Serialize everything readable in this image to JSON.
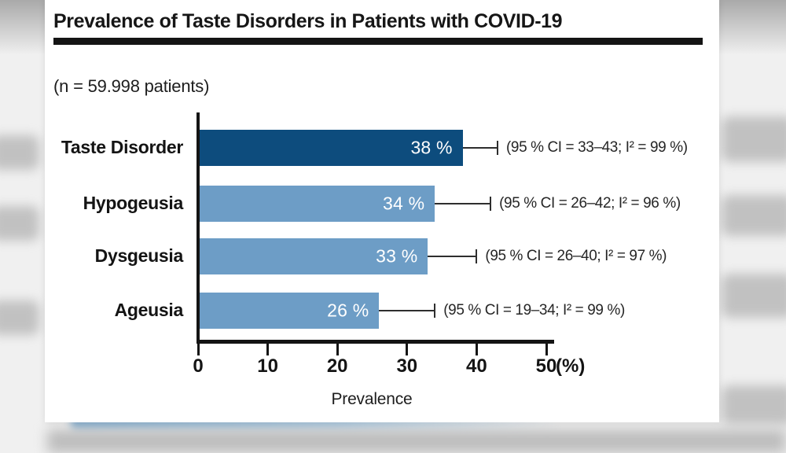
{
  "header": {
    "title": "Prevalence of Taste Disorders in Patients with COVID-19",
    "sample_note": "(n = 59.998 patients)"
  },
  "chart_data": {
    "type": "bar",
    "orientation": "horizontal",
    "title": "Prevalence of Taste Disorders in Patients with COVID-19",
    "sample_note": "(n = 59.998 patients)",
    "categories": [
      "Taste Disorder",
      "Hypogeusia",
      "Dysgeusia",
      "Ageusia"
    ],
    "values": [
      38,
      34,
      33,
      26
    ],
    "value_labels": [
      "38 %",
      "34 %",
      "33 %",
      "26 %"
    ],
    "ci_upper": [
      43,
      42,
      40,
      34
    ],
    "annotations": [
      "(95 % CI = 33–43; I² = 99 %)",
      "(95 % CI = 26–42; I² = 96 %)",
      "(95 % CI = 26–40; I² = 97 %)",
      "(95 % CI = 19–34; I² = 99 %)"
    ],
    "bar_colors": [
      "#0d4c7d",
      "#6d9dc6",
      "#6d9dc6",
      "#6d9dc6"
    ],
    "xlabel": "Prevalence",
    "x_ticks": [
      0,
      10,
      20,
      30,
      40,
      50
    ],
    "x_unit": "(%)",
    "xlim": [
      0,
      50
    ],
    "grid": false,
    "legend_position": "none"
  },
  "colors": {
    "dark_bar": "#0d4c7d",
    "light_bar": "#6d9dc6",
    "axis": "#141414",
    "error_bar": "#2e2e2e",
    "value_text": "#ffffff",
    "background_blur": "#bdbdbd",
    "bottom_band_blue": "#84aecf"
  }
}
